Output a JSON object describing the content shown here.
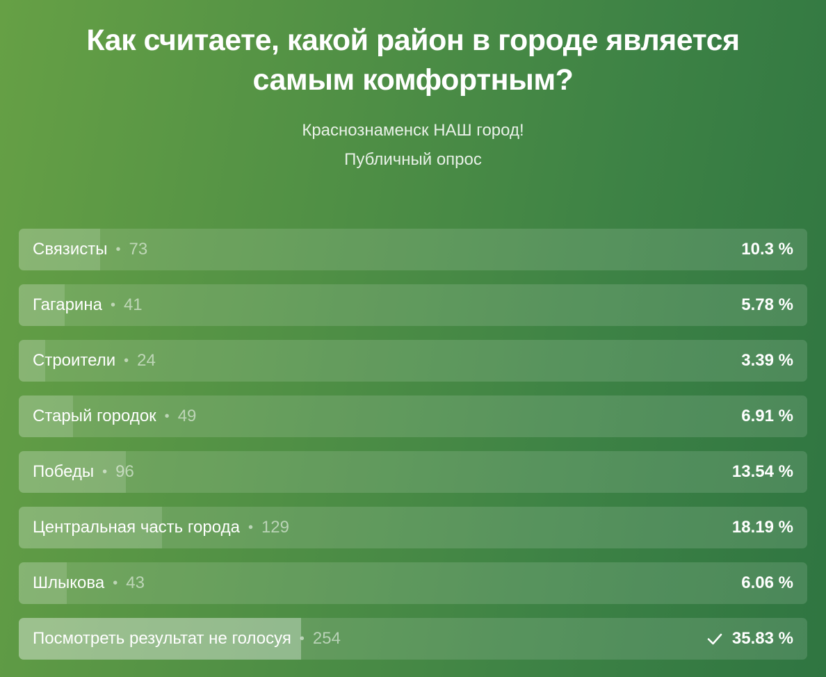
{
  "poll": {
    "title": "Как считаете, какой район в городе является самым комфортным?",
    "author": "Краснознаменск НАШ город!",
    "type": "Публичный опрос"
  },
  "options": [
    {
      "label": "Связисты",
      "votes": "73",
      "percent": "10.3 %",
      "fraction": 0.103,
      "selected": false
    },
    {
      "label": "Гагарина",
      "votes": "41",
      "percent": "5.78 %",
      "fraction": 0.0578,
      "selected": false
    },
    {
      "label": "Строители",
      "votes": "24",
      "percent": "3.39 %",
      "fraction": 0.0339,
      "selected": false
    },
    {
      "label": "Старый городок",
      "votes": "49",
      "percent": "6.91 %",
      "fraction": 0.0691,
      "selected": false
    },
    {
      "label": "Победы",
      "votes": "96",
      "percent": "13.54 %",
      "fraction": 0.1354,
      "selected": false
    },
    {
      "label": "Центральная часть города",
      "votes": "129",
      "percent": "18.19 %",
      "fraction": 0.1819,
      "selected": false
    },
    {
      "label": "Шлыкова",
      "votes": "43",
      "percent": "6.06 %",
      "fraction": 0.0606,
      "selected": false
    },
    {
      "label": "Посмотреть результат не голосуя",
      "votes": "254",
      "percent": "35.83 %",
      "fraction": 0.3583,
      "selected": true
    }
  ],
  "separator": "•",
  "icons": {
    "selected": "check-icon"
  }
}
